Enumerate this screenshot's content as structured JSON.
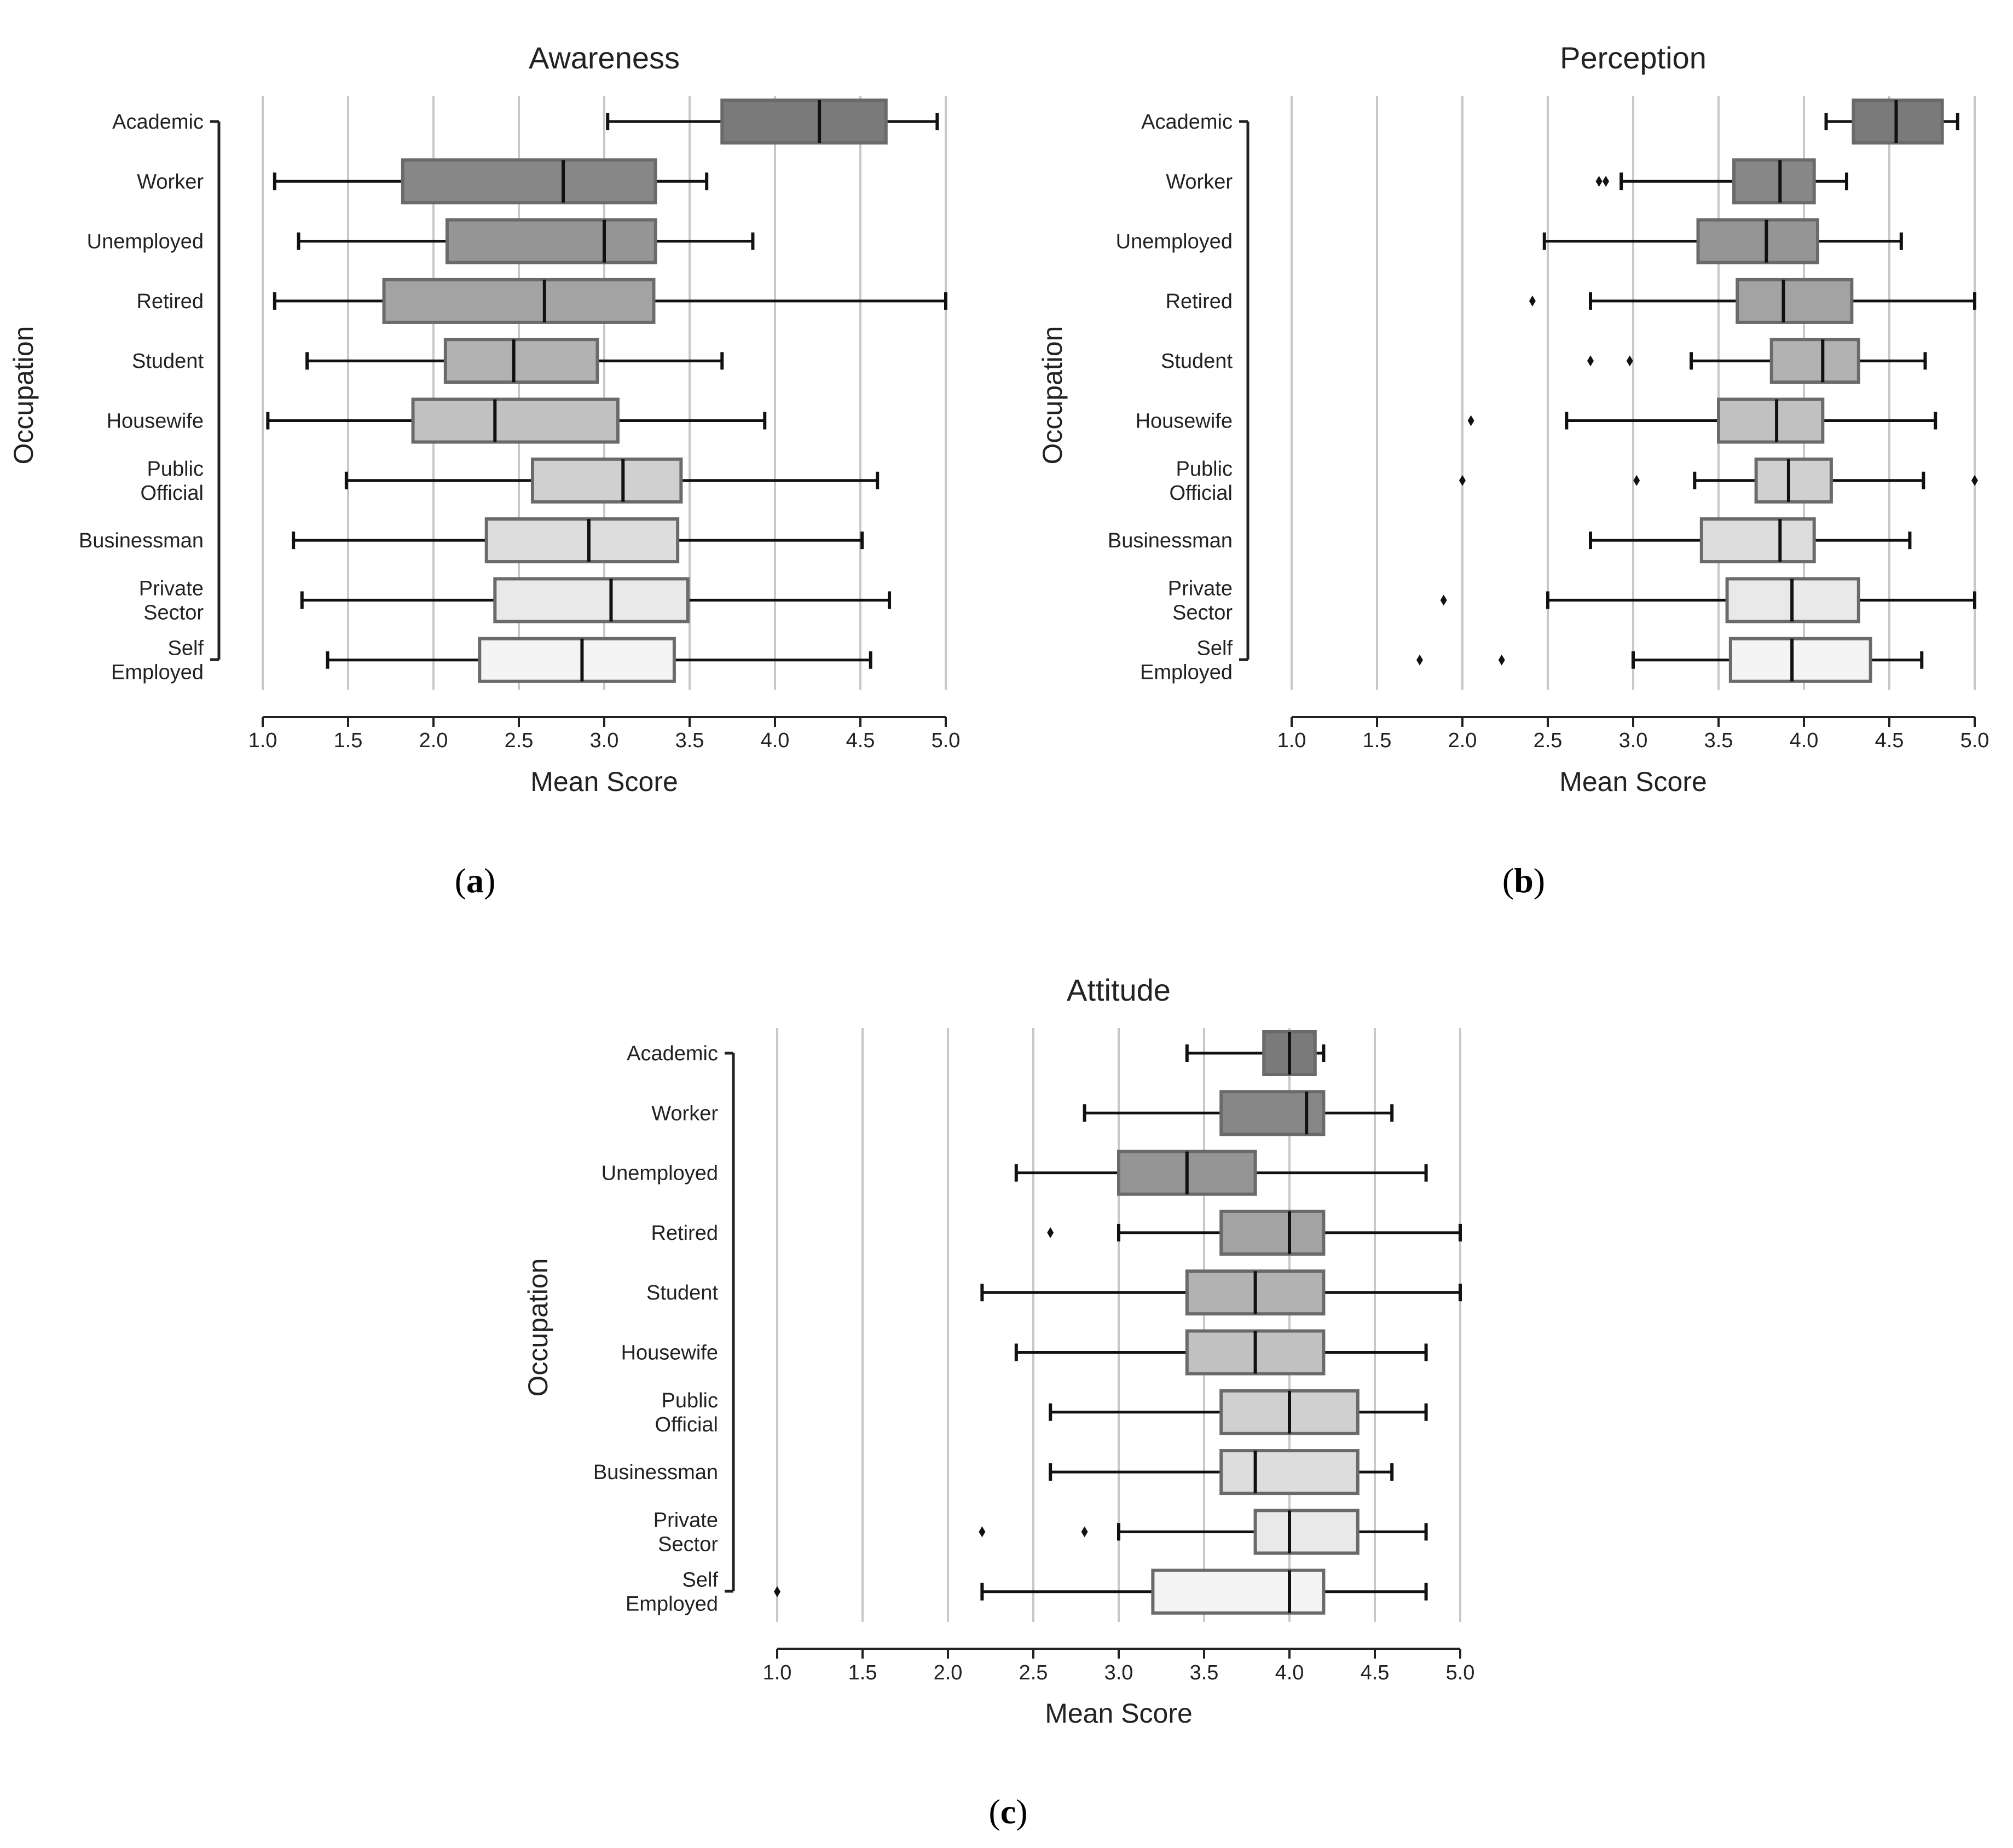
{
  "chart_data": [
    {
      "type": "boxplot",
      "panel_label": "(a)",
      "panel_letter": "a",
      "title": "Awareness",
      "xlabel": "Mean Score",
      "ylabel": "Occupation",
      "xlim": [
        1.0,
        5.0
      ],
      "xticks": [
        "1.0",
        "1.5",
        "2.0",
        "2.5",
        "3.0",
        "3.5",
        "4.0",
        "4.5",
        "5.0"
      ],
      "vertical_grid": true,
      "categories": [
        {
          "label": [
            "Academic"
          ],
          "whisker_low": 3.02,
          "q1": 3.69,
          "median": 4.26,
          "q3": 4.65,
          "whisker_high": 4.95,
          "outliers": [],
          "fill": "#7a7a7a"
        },
        {
          "label": [
            "Worker"
          ],
          "whisker_low": 1.07,
          "q1": 1.82,
          "median": 2.76,
          "q3": 3.3,
          "whisker_high": 3.6,
          "outliers": [],
          "fill": "#878787"
        },
        {
          "label": [
            "Unemployed"
          ],
          "whisker_low": 1.21,
          "q1": 2.08,
          "median": 3.0,
          "q3": 3.3,
          "whisker_high": 3.87,
          "outliers": [],
          "fill": "#959595"
        },
        {
          "label": [
            "Retired"
          ],
          "whisker_low": 1.07,
          "q1": 1.71,
          "median": 2.65,
          "q3": 3.29,
          "whisker_high": 5.0,
          "outliers": [],
          "fill": "#a3a3a3"
        },
        {
          "label": [
            "Student"
          ],
          "whisker_low": 1.26,
          "q1": 2.07,
          "median": 2.47,
          "q3": 2.96,
          "whisker_high": 3.69,
          "outliers": [],
          "fill": "#b2b2b2"
        },
        {
          "label": [
            "Housewife"
          ],
          "whisker_low": 1.03,
          "q1": 1.88,
          "median": 2.36,
          "q3": 3.08,
          "whisker_high": 3.94,
          "outliers": [],
          "fill": "#c1c1c1"
        },
        {
          "label": [
            "Public",
            "Official"
          ],
          "whisker_low": 1.49,
          "q1": 2.58,
          "median": 3.11,
          "q3": 3.45,
          "whisker_high": 4.6,
          "outliers": [],
          "fill": "#d0d0d0"
        },
        {
          "label": [
            "Businessman"
          ],
          "whisker_low": 1.18,
          "q1": 2.31,
          "median": 2.91,
          "q3": 3.43,
          "whisker_high": 4.51,
          "outliers": [],
          "fill": "#dddddd"
        },
        {
          "label": [
            "Private",
            "Sector"
          ],
          "whisker_low": 1.23,
          "q1": 2.36,
          "median": 3.04,
          "q3": 3.49,
          "whisker_high": 4.67,
          "outliers": [],
          "fill": "#e9e9e9"
        },
        {
          "label": [
            "Self",
            "Employed"
          ],
          "whisker_low": 1.38,
          "q1": 2.27,
          "median": 2.87,
          "q3": 3.41,
          "whisker_high": 4.56,
          "outliers": [],
          "fill": "#f4f4f4"
        }
      ]
    },
    {
      "type": "boxplot",
      "panel_label": "(b)",
      "panel_letter": "b",
      "title": "Perception",
      "xlabel": "Mean Score",
      "ylabel": "Occupation",
      "xlim": [
        1.0,
        5.0
      ],
      "xticks": [
        "1.0",
        "1.5",
        "2.0",
        "2.5",
        "3.0",
        "3.5",
        "4.0",
        "4.5",
        "5.0"
      ],
      "vertical_grid": true,
      "categories": [
        {
          "label": [
            "Academic"
          ],
          "whisker_low": 4.13,
          "q1": 4.29,
          "median": 4.54,
          "q3": 4.81,
          "whisker_high": 4.9,
          "outliers": [],
          "fill": "#7a7a7a"
        },
        {
          "label": [
            "Worker"
          ],
          "whisker_low": 2.93,
          "q1": 3.59,
          "median": 3.86,
          "q3": 4.06,
          "whisker_high": 4.25,
          "outliers": [
            2.8,
            2.84
          ],
          "fill": "#878787"
        },
        {
          "label": [
            "Unemployed"
          ],
          "whisker_low": 2.48,
          "q1": 3.38,
          "median": 3.78,
          "q3": 4.08,
          "whisker_high": 4.57,
          "outliers": [],
          "fill": "#959595"
        },
        {
          "label": [
            "Retired"
          ],
          "whisker_low": 2.75,
          "q1": 3.61,
          "median": 3.88,
          "q3": 4.28,
          "whisker_high": 5.0,
          "outliers": [
            2.41
          ],
          "fill": "#a3a3a3"
        },
        {
          "label": [
            "Student"
          ],
          "whisker_low": 3.34,
          "q1": 3.81,
          "median": 4.11,
          "q3": 4.32,
          "whisker_high": 4.71,
          "outliers": [
            2.75,
            2.98
          ],
          "fill": "#b2b2b2"
        },
        {
          "label": [
            "Housewife"
          ],
          "whisker_low": 2.61,
          "q1": 3.5,
          "median": 3.84,
          "q3": 4.11,
          "whisker_high": 4.77,
          "outliers": [
            2.05
          ],
          "fill": "#c1c1c1"
        },
        {
          "label": [
            "Public",
            "Official"
          ],
          "whisker_low": 3.36,
          "q1": 3.72,
          "median": 3.91,
          "q3": 4.16,
          "whisker_high": 4.7,
          "outliers": [
            2.0,
            3.02,
            5.0
          ],
          "fill": "#d0d0d0"
        },
        {
          "label": [
            "Businessman"
          ],
          "whisker_low": 2.75,
          "q1": 3.4,
          "median": 3.86,
          "q3": 4.06,
          "whisker_high": 4.62,
          "outliers": [],
          "fill": "#dddddd"
        },
        {
          "label": [
            "Private",
            "Sector"
          ],
          "whisker_low": 2.5,
          "q1": 3.55,
          "median": 3.93,
          "q3": 4.32,
          "whisker_high": 5.0,
          "outliers": [
            1.89
          ],
          "fill": "#e9e9e9"
        },
        {
          "label": [
            "Self",
            "Employed"
          ],
          "whisker_low": 3.0,
          "q1": 3.57,
          "median": 3.93,
          "q3": 4.39,
          "whisker_high": 4.69,
          "outliers": [
            1.75,
            2.23
          ],
          "fill": "#f4f4f4"
        }
      ]
    },
    {
      "type": "boxplot",
      "panel_label": "(c)",
      "panel_letter": "c",
      "title": "Attitude",
      "xlabel": "Mean Score",
      "ylabel": "Occupation",
      "xlim": [
        1.0,
        5.0
      ],
      "xticks": [
        "1.0",
        "1.5",
        "2.0",
        "2.5",
        "3.0",
        "3.5",
        "4.0",
        "4.5",
        "5.0"
      ],
      "vertical_grid": true,
      "categories": [
        {
          "label": [
            "Academic"
          ],
          "whisker_low": 3.4,
          "q1": 3.85,
          "median": 4.0,
          "q3": 4.15,
          "whisker_high": 4.2,
          "outliers": [],
          "fill": "#7a7a7a"
        },
        {
          "label": [
            "Worker"
          ],
          "whisker_low": 2.8,
          "q1": 3.6,
          "median": 4.1,
          "q3": 4.2,
          "whisker_high": 4.6,
          "outliers": [],
          "fill": "#878787"
        },
        {
          "label": [
            "Unemployed"
          ],
          "whisker_low": 2.4,
          "q1": 3.0,
          "median": 3.4,
          "q3": 3.8,
          "whisker_high": 4.8,
          "outliers": [],
          "fill": "#959595"
        },
        {
          "label": [
            "Retired"
          ],
          "whisker_low": 3.0,
          "q1": 3.6,
          "median": 4.0,
          "q3": 4.2,
          "whisker_high": 5.0,
          "outliers": [
            2.6
          ],
          "fill": "#a3a3a3"
        },
        {
          "label": [
            "Student"
          ],
          "whisker_low": 2.2,
          "q1": 3.4,
          "median": 3.8,
          "q3": 4.2,
          "whisker_high": 5.0,
          "outliers": [],
          "fill": "#b2b2b2"
        },
        {
          "label": [
            "Housewife"
          ],
          "whisker_low": 2.4,
          "q1": 3.4,
          "median": 3.8,
          "q3": 4.2,
          "whisker_high": 4.8,
          "outliers": [],
          "fill": "#c1c1c1"
        },
        {
          "label": [
            "Public",
            "Official"
          ],
          "whisker_low": 2.6,
          "q1": 3.6,
          "median": 4.0,
          "q3": 4.4,
          "whisker_high": 4.8,
          "outliers": [],
          "fill": "#d0d0d0"
        },
        {
          "label": [
            "Businessman"
          ],
          "whisker_low": 2.6,
          "q1": 3.6,
          "median": 3.8,
          "q3": 4.4,
          "whisker_high": 4.6,
          "outliers": [],
          "fill": "#dddddd"
        },
        {
          "label": [
            "Private",
            "Sector"
          ],
          "whisker_low": 3.0,
          "q1": 3.8,
          "median": 4.0,
          "q3": 4.4,
          "whisker_high": 4.8,
          "outliers": [
            2.2,
            2.8
          ],
          "fill": "#e9e9e9"
        },
        {
          "label": [
            "Self",
            "Employed"
          ],
          "whisker_low": 2.2,
          "q1": 3.2,
          "median": 4.0,
          "q3": 4.2,
          "whisker_high": 4.8,
          "outliers": [
            1.0
          ],
          "fill": "#f4f4f4"
        }
      ]
    }
  ]
}
